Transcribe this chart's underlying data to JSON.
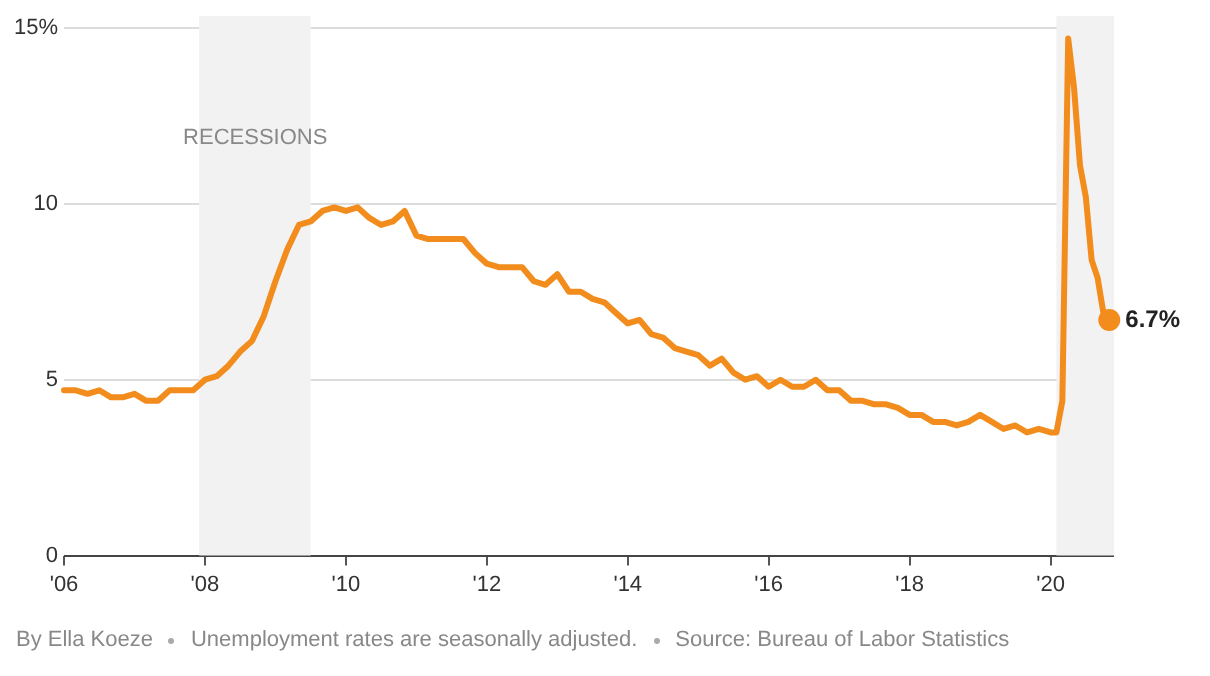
{
  "chart_data": {
    "type": "line",
    "x": [
      2006,
      2006.167,
      2006.333,
      2006.5,
      2006.667,
      2006.833,
      2007,
      2007.167,
      2007.333,
      2007.5,
      2007.667,
      2007.833,
      2008,
      2008.167,
      2008.333,
      2008.5,
      2008.667,
      2008.833,
      2009,
      2009.167,
      2009.333,
      2009.5,
      2009.667,
      2009.833,
      2010,
      2010.167,
      2010.333,
      2010.5,
      2010.667,
      2010.833,
      2011,
      2011.167,
      2011.333,
      2011.5,
      2011.667,
      2011.833,
      2012,
      2012.167,
      2012.333,
      2012.5,
      2012.667,
      2012.833,
      2013,
      2013.167,
      2013.333,
      2013.5,
      2013.667,
      2013.833,
      2014,
      2014.167,
      2014.333,
      2014.5,
      2014.667,
      2014.833,
      2015,
      2015.167,
      2015.333,
      2015.5,
      2015.667,
      2015.833,
      2016,
      2016.167,
      2016.333,
      2016.5,
      2016.667,
      2016.833,
      2017,
      2017.167,
      2017.333,
      2017.5,
      2017.667,
      2017.833,
      2018,
      2018.167,
      2018.333,
      2018.5,
      2018.667,
      2018.833,
      2019,
      2019.167,
      2019.333,
      2019.5,
      2019.667,
      2019.833,
      2020,
      2020.083,
      2020.167,
      2020.25,
      2020.333,
      2020.417,
      2020.5,
      2020.583,
      2020.667,
      2020.75,
      2020.833
    ],
    "series": [
      {
        "color": "#f28c1c",
        "values": [
          4.7,
          4.7,
          4.6,
          4.7,
          4.5,
          4.5,
          4.6,
          4.4,
          4.4,
          4.7,
          4.7,
          4.7,
          5.0,
          5.1,
          5.4,
          5.8,
          6.1,
          6.8,
          7.8,
          8.7,
          9.4,
          9.5,
          9.8,
          9.9,
          9.8,
          9.9,
          9.6,
          9.4,
          9.5,
          9.8,
          9.1,
          9.0,
          9.0,
          9.0,
          9.0,
          8.6,
          8.3,
          8.2,
          8.2,
          8.2,
          7.8,
          7.7,
          8.0,
          7.5,
          7.5,
          7.3,
          7.2,
          6.9,
          6.6,
          6.7,
          6.3,
          6.2,
          5.9,
          5.8,
          5.7,
          5.4,
          5.6,
          5.2,
          5.0,
          5.1,
          4.8,
          5.0,
          4.8,
          4.8,
          5.0,
          4.7,
          4.7,
          4.4,
          4.4,
          4.3,
          4.3,
          4.2,
          4.0,
          4.0,
          3.8,
          3.8,
          3.7,
          3.8,
          4.0,
          3.8,
          3.6,
          3.7,
          3.5,
          3.6,
          3.5,
          3.5,
          4.4,
          14.7,
          13.3,
          11.1,
          10.2,
          8.4,
          7.9,
          6.9,
          6.7
        ]
      }
    ],
    "xlim": [
      2006,
      2020.9
    ],
    "xticks": [
      {
        "value": 2006,
        "label": "'06"
      },
      {
        "value": 2008,
        "label": "'08"
      },
      {
        "value": 2010,
        "label": "'10"
      },
      {
        "value": 2012,
        "label": "'12"
      },
      {
        "value": 2014,
        "label": "'14"
      },
      {
        "value": 2016,
        "label": "'16"
      },
      {
        "value": 2018,
        "label": "'18"
      },
      {
        "value": 2020,
        "label": "'20"
      }
    ],
    "ylim": [
      0,
      15
    ],
    "yticks": [
      0,
      5,
      10,
      {
        "value": 15,
        "label": "15%"
      }
    ],
    "grid": "y",
    "legend": false,
    "bands": [
      {
        "axis": "x",
        "from": 2007.917,
        "to": 2009.5,
        "label": "RECESSIONS",
        "color": "#f2f2f2"
      },
      {
        "axis": "x",
        "from": 2020.083,
        "to": 2020.9,
        "color": "#f2f2f2"
      }
    ],
    "annotations": [
      {
        "text": "6.7%",
        "x": 2020.833,
        "y": 6.7
      },
      "By Ella Koeze",
      "Unemployment rates are seasonally adjusted.",
      "Source: Bureau of Labor Statistics"
    ]
  }
}
